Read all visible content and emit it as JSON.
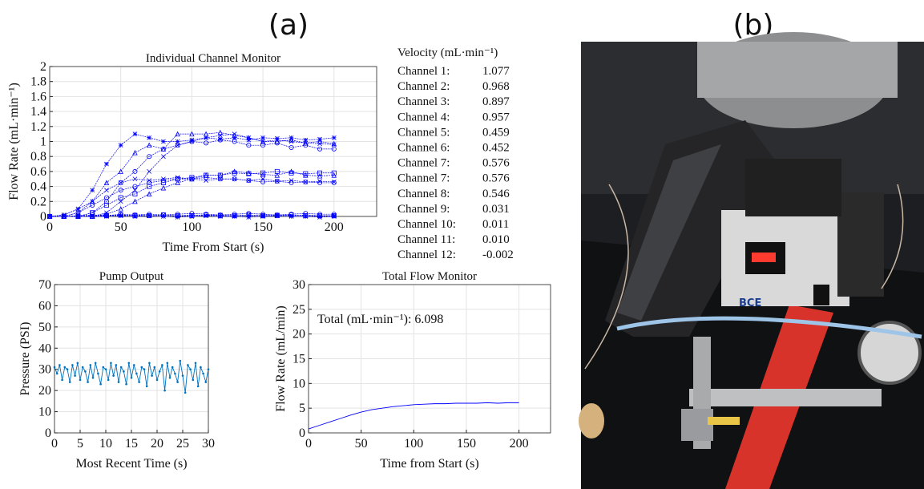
{
  "panels": {
    "a": "(a)",
    "b": "(b)"
  },
  "velocity": {
    "title": "Velocity (mL·min⁻¹)",
    "rows": [
      {
        "label": "Channel 1:",
        "value": "1.077"
      },
      {
        "label": "Channel 2:",
        "value": "0.968"
      },
      {
        "label": "Channel 3:",
        "value": "0.897"
      },
      {
        "label": "Channel 4:",
        "value": "0.957"
      },
      {
        "label": "Channel 5:",
        "value": "0.459"
      },
      {
        "label": "Channel 6:",
        "value": "0.452"
      },
      {
        "label": "Channel 7:",
        "value": "0.576"
      },
      {
        "label": "Channel 7:",
        "value": "0.576"
      },
      {
        "label": "Channel 8:",
        "value": "0.546"
      },
      {
        "label": "Channel 9:",
        "value": "0.031"
      },
      {
        "label": "Channel 10:",
        "value": "0.011"
      },
      {
        "label": "Channel 11:",
        "value": "0.010"
      },
      {
        "label": "Channel 12:",
        "value": "-0.002"
      }
    ]
  },
  "chart_data": [
    {
      "type": "line",
      "title": "Individual Channel Monitor",
      "x_label": "Time From Start (s)",
      "y_label": "Flow Rate (mL·min⁻¹)",
      "xlim": [
        0,
        230
      ],
      "xticks": [
        0,
        50,
        100,
        150,
        200
      ],
      "ylim": [
        0,
        2
      ],
      "yticks": [
        0,
        0.2,
        0.4,
        0.6,
        0.8,
        1,
        1.2,
        1.4,
        1.6,
        1.8,
        2
      ],
      "grid": true,
      "x": [
        0,
        10,
        20,
        30,
        40,
        50,
        60,
        70,
        80,
        90,
        100,
        110,
        120,
        130,
        140,
        150,
        160,
        170,
        180,
        190,
        200
      ],
      "series": [
        {
          "color": "#0000ff",
          "marker": "star",
          "values": [
            0,
            0.02,
            0.1,
            0.35,
            0.7,
            0.95,
            1.1,
            1.05,
            1.0,
            1.0,
            1.02,
            1.05,
            1.03,
            1.05,
            1.02,
            1.05,
            1.04,
            1.05,
            1.02,
            1.03,
            1.05
          ]
        },
        {
          "color": "#0000ff",
          "marker": "triangle",
          "values": [
            0,
            0,
            0.05,
            0.2,
            0.45,
            0.6,
            0.85,
            0.95,
            0.9,
            1.1,
            1.1,
            1.1,
            1.12,
            1.08,
            1.05,
            1.0,
            1.0,
            1.02,
            0.98,
            1.0,
            0.97
          ]
        },
        {
          "color": "#0000ff",
          "marker": "circle",
          "values": [
            0,
            0,
            0,
            0.05,
            0.2,
            0.45,
            0.6,
            0.8,
            0.9,
            0.95,
            1.0,
            0.98,
            1.02,
            1.0,
            0.95,
            0.95,
            0.98,
            0.92,
            0.95,
            0.9,
            0.9
          ]
        },
        {
          "color": "#0000ff",
          "marker": "x",
          "values": [
            0,
            0,
            0,
            0,
            0.05,
            0.2,
            0.35,
            0.6,
            0.8,
            0.95,
            1.0,
            1.05,
            1.08,
            1.1,
            1.05,
            1.0,
            1.02,
            1.0,
            0.98,
            0.97,
            0.96
          ]
        },
        {
          "color": "#0000ff",
          "marker": "x",
          "values": [
            0,
            0.02,
            0.1,
            0.2,
            0.35,
            0.45,
            0.5,
            0.48,
            0.5,
            0.52,
            0.5,
            0.48,
            0.5,
            0.5,
            0.48,
            0.5,
            0.47,
            0.48,
            0.46,
            0.47,
            0.46
          ]
        },
        {
          "color": "#0000ff",
          "marker": "circle",
          "values": [
            0,
            0,
            0.05,
            0.15,
            0.25,
            0.35,
            0.4,
            0.45,
            0.48,
            0.5,
            0.5,
            0.52,
            0.5,
            0.5,
            0.48,
            0.46,
            0.47,
            0.45,
            0.46,
            0.45,
            0.45
          ]
        },
        {
          "color": "#0000ff",
          "marker": "square",
          "values": [
            0,
            0,
            0,
            0.05,
            0.15,
            0.25,
            0.3,
            0.4,
            0.45,
            0.5,
            0.52,
            0.55,
            0.55,
            0.58,
            0.57,
            0.58,
            0.6,
            0.58,
            0.57,
            0.58,
            0.58
          ]
        },
        {
          "color": "#0000ff",
          "marker": "triangle",
          "values": [
            0,
            0,
            0,
            0,
            0.03,
            0.1,
            0.2,
            0.3,
            0.38,
            0.45,
            0.5,
            0.55,
            0.55,
            0.6,
            0.58,
            0.56,
            0.55,
            0.6,
            0.55,
            0.54,
            0.55
          ]
        },
        {
          "color": "#0000ff",
          "marker": "circle",
          "values": [
            0,
            0,
            0.01,
            0.02,
            0.01,
            0.03,
            0.02,
            0.03,
            0.02,
            0.03,
            0.04,
            0.03,
            0.02,
            0.03,
            0.04,
            0.03,
            0.02,
            0.03,
            0.04,
            0.03,
            0.03
          ]
        },
        {
          "color": "#0000ff",
          "marker": "x",
          "values": [
            0,
            0,
            0,
            0.01,
            0.02,
            0.01,
            0.02,
            0.01,
            0.02,
            0.01,
            0.02,
            0.01,
            0.02,
            0.01,
            0.02,
            0.01,
            0.02,
            0.01,
            0.02,
            0.01,
            0.01
          ]
        },
        {
          "color": "#0000ff",
          "marker": "square",
          "values": [
            0,
            0,
            0,
            0,
            0.01,
            0.02,
            0.01,
            0.01,
            0.02,
            0.01,
            0.01,
            0.02,
            0.01,
            0.01,
            0.02,
            0.01,
            0.01,
            0.02,
            0.01,
            0.01,
            0.01
          ]
        },
        {
          "color": "#0000ff",
          "marker": "star",
          "values": [
            0,
            0,
            0,
            0,
            0,
            0.01,
            0,
            0.01,
            0,
            -0.01,
            0,
            0.01,
            0,
            0,
            -0.01,
            0,
            0.01,
            0,
            0,
            -0.01,
            0
          ]
        }
      ]
    },
    {
      "type": "line",
      "title": "Pump Output",
      "x_label": "Most Recent Time (s)",
      "y_label": "Pressure (PSI)",
      "xlim": [
        0,
        30
      ],
      "xticks": [
        0,
        5,
        10,
        15,
        20,
        25,
        30
      ],
      "ylim": [
        0,
        70
      ],
      "yticks": [
        0,
        10,
        20,
        30,
        40,
        50,
        60,
        70
      ],
      "grid": true,
      "x": [
        0,
        0.5,
        1,
        1.5,
        2,
        2.5,
        3,
        3.5,
        4,
        4.5,
        5,
        5.5,
        6,
        6.5,
        7,
        7.5,
        8,
        8.5,
        9,
        9.5,
        10,
        10.5,
        11,
        11.5,
        12,
        12.5,
        13,
        13.5,
        14,
        14.5,
        15,
        15.5,
        16,
        16.5,
        17,
        17.5,
        18,
        18.5,
        19,
        19.5,
        20,
        20.5,
        21,
        21.5,
        22,
        22.5,
        23,
        23.5,
        24,
        24.5,
        25,
        25.5,
        26,
        26.5,
        27,
        27.5,
        28,
        28.5,
        29,
        29.5,
        30
      ],
      "series": [
        {
          "color": "#0072bd",
          "marker": "dot",
          "values": [
            31,
            28,
            32,
            25,
            31,
            30,
            24,
            32,
            27,
            33,
            25,
            31,
            29,
            24,
            32,
            26,
            33,
            28,
            23,
            31,
            30,
            25,
            33,
            27,
            32,
            24,
            31,
            29,
            23,
            33,
            26,
            32,
            28,
            24,
            31,
            30,
            22,
            33,
            27,
            31,
            25,
            29,
            32,
            20,
            33,
            26,
            31,
            28,
            24,
            34,
            27,
            19,
            32,
            30,
            25,
            33,
            22,
            31,
            28,
            24,
            30
          ]
        }
      ]
    },
    {
      "type": "line",
      "title": "Total Flow Monitor",
      "x_label": "Time from Start (s)",
      "y_label": "Flow Rate (mL/min)",
      "annotation": "Total (mL·min⁻¹): 6.098",
      "xlim": [
        0,
        230
      ],
      "xticks": [
        0,
        50,
        100,
        150,
        200
      ],
      "ylim": [
        0,
        30
      ],
      "yticks": [
        0,
        5,
        10,
        15,
        20,
        25,
        30
      ],
      "grid": true,
      "x": [
        0,
        10,
        20,
        30,
        40,
        50,
        60,
        70,
        80,
        90,
        100,
        110,
        120,
        130,
        140,
        150,
        160,
        170,
        180,
        190,
        200
      ],
      "series": [
        {
          "color": "#0000ff",
          "marker": "none",
          "values": [
            0.8,
            1.5,
            2.2,
            2.9,
            3.6,
            4.2,
            4.7,
            5.0,
            5.3,
            5.5,
            5.7,
            5.8,
            5.9,
            5.9,
            6.0,
            6.0,
            6.0,
            6.1,
            6.0,
            6.1,
            6.1
          ]
        }
      ]
    }
  ]
}
